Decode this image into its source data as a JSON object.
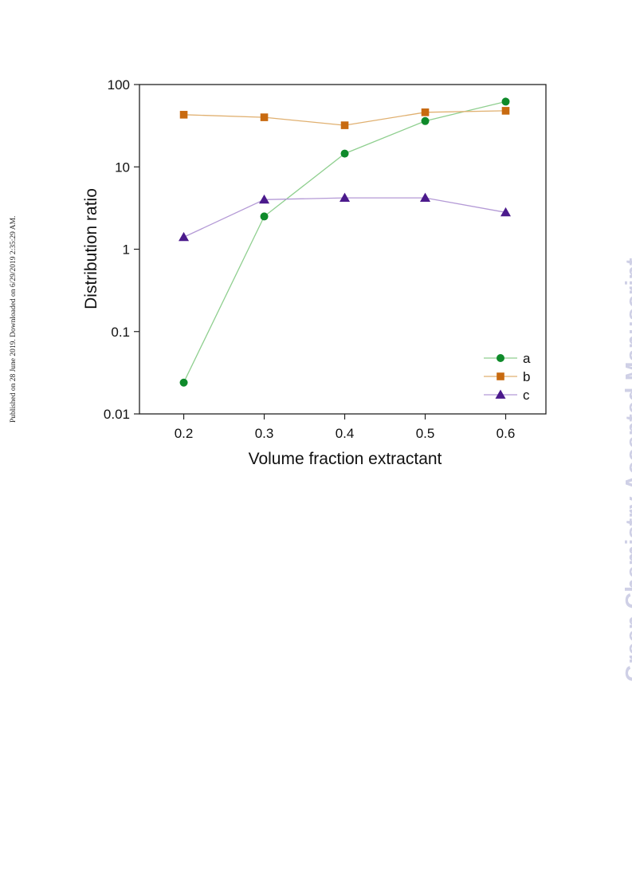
{
  "side_note": "Published on 28 June 2019. Downloaded on 6/29/2019 2:35:29 AM.",
  "watermark": "Green Chemistry Accepted Manuscript",
  "chart_data": {
    "type": "line",
    "xlabel": "Volume fraction extractant",
    "ylabel": "Distribution ratio",
    "x": [
      0.2,
      0.3,
      0.4,
      0.5,
      0.6
    ],
    "x_ticks": [
      "0.2",
      "0.3",
      "0.4",
      "0.5",
      "0.6"
    ],
    "y_scale": "log",
    "ylim": [
      0.01,
      100
    ],
    "y_ticks": [
      "0.01",
      "0.1",
      "1",
      "10",
      "100"
    ],
    "xlim": [
      0.145,
      0.65
    ],
    "grid": false,
    "legend_position": "bottom-right",
    "series": [
      {
        "name": "a",
        "marker": "circle",
        "color": "#0e8a2a",
        "line_color": "#8fcf8f",
        "values": [
          0.024,
          2.5,
          14.5,
          36,
          62
        ]
      },
      {
        "name": "b",
        "marker": "square",
        "color": "#c86a10",
        "line_color": "#e0b070",
        "values": [
          43,
          40,
          32,
          46,
          48
        ]
      },
      {
        "name": "c",
        "marker": "triangle",
        "color": "#4b1a8c",
        "line_color": "#b49ad6",
        "values": [
          1.4,
          4.0,
          4.2,
          4.2,
          2.8
        ]
      }
    ]
  }
}
